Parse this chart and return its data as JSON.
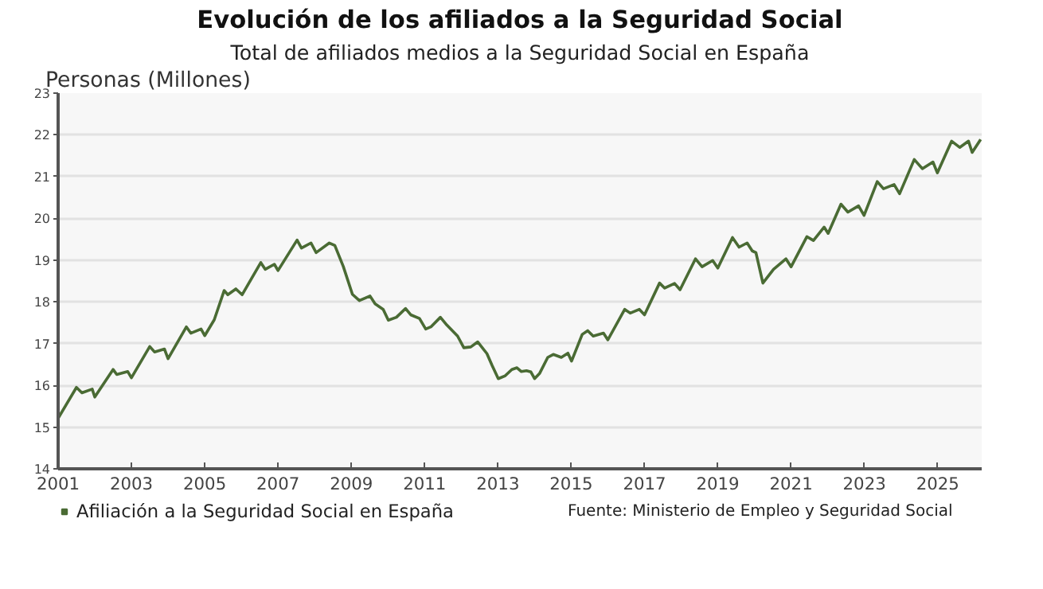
{
  "chart_data": {
    "type": "line",
    "title": "Evolución de los afiliados a la Seguridad Social",
    "subtitle": "Total de afiliados medios a la Seguridad Social en España",
    "ylabel": "Personas (Millones)",
    "annotations": [
      "Fuente: Ministerio de Empleo y Seguridad Social"
    ],
    "x": [
      2001.0,
      2001.5,
      2001.65,
      2001.93,
      2002.0,
      2002.5,
      2002.6,
      2002.9,
      2003.0,
      2003.5,
      2003.63,
      2003.9,
      2004.0,
      2004.5,
      2004.62,
      2004.9,
      2005.0,
      2005.26,
      2005.53,
      2005.63,
      2005.85,
      2006.02,
      2006.53,
      2006.65,
      2006.9,
      2007.0,
      2007.52,
      2007.64,
      2007.9,
      2008.04,
      2008.4,
      2008.55,
      2008.78,
      2009.03,
      2009.22,
      2009.51,
      2009.65,
      2009.87,
      2010.01,
      2010.23,
      2010.48,
      2010.62,
      2010.86,
      2011.03,
      2011.17,
      2011.43,
      2011.61,
      2011.9,
      2012.07,
      2012.26,
      2012.45,
      2012.7,
      2012.84,
      2013.01,
      2013.2,
      2013.38,
      2013.52,
      2013.64,
      2013.78,
      2013.9,
      2014.0,
      2014.14,
      2014.36,
      2014.51,
      2014.73,
      2014.91,
      2015.01,
      2015.3,
      2015.45,
      2015.6,
      2015.88,
      2016.0,
      2016.46,
      2016.61,
      2016.86,
      2017.0,
      2017.41,
      2017.55,
      2017.82,
      2017.97,
      2018.39,
      2018.57,
      2018.86,
      2019.0,
      2019.4,
      2019.58,
      2019.8,
      2019.94,
      2020.04,
      2020.23,
      2020.52,
      2020.86,
      2021.0,
      2021.43,
      2021.61,
      2021.9,
      2022.01,
      2022.36,
      2022.55,
      2022.84,
      2022.99,
      2023.35,
      2023.52,
      2023.81,
      2023.96,
      2024.36,
      2024.58,
      2024.87,
      2024.99,
      2025.38,
      2025.6,
      2025.84,
      2025.94,
      2026.17
    ],
    "series": [
      {
        "name": "Afiliación a la Seguridad Social en España",
        "color": "#4a6b34",
        "values": [
          15.21,
          15.95,
          15.82,
          15.91,
          15.72,
          16.38,
          16.26,
          16.33,
          16.18,
          16.93,
          16.8,
          16.87,
          16.64,
          17.4,
          17.25,
          17.35,
          17.19,
          17.57,
          18.27,
          18.17,
          18.31,
          18.17,
          18.94,
          18.78,
          18.9,
          18.75,
          19.48,
          19.29,
          19.41,
          19.18,
          19.41,
          19.35,
          18.85,
          18.18,
          18.03,
          18.14,
          17.95,
          17.82,
          17.56,
          17.63,
          17.84,
          17.69,
          17.6,
          17.35,
          17.4,
          17.63,
          17.44,
          17.18,
          16.9,
          16.92,
          17.04,
          16.76,
          16.48,
          16.16,
          16.23,
          16.38,
          16.42,
          16.33,
          16.35,
          16.32,
          16.16,
          16.29,
          16.67,
          16.74,
          16.67,
          16.77,
          16.58,
          17.22,
          17.31,
          17.18,
          17.25,
          17.09,
          17.82,
          17.73,
          17.82,
          17.69,
          18.45,
          18.33,
          18.44,
          18.29,
          19.03,
          18.84,
          18.99,
          18.81,
          19.54,
          19.31,
          19.41,
          19.22,
          19.18,
          18.45,
          18.78,
          19.03,
          18.84,
          19.56,
          19.47,
          19.79,
          19.64,
          20.34,
          20.15,
          20.3,
          20.07,
          20.88,
          20.71,
          20.81,
          20.59,
          21.41,
          21.19,
          21.35,
          21.09,
          21.85,
          21.7,
          21.85,
          21.58,
          21.89
        ]
      }
    ],
    "xlim": [
      2001.0,
      2026.2
    ],
    "xticks": [
      2001,
      2003,
      2005,
      2007,
      2009,
      2011,
      2013,
      2015,
      2017,
      2019,
      2021,
      2023,
      2025
    ],
    "ylim": [
      14,
      23
    ],
    "yticks": [
      14,
      15,
      16,
      17,
      18,
      19,
      20,
      21,
      22,
      23
    ],
    "grid": "y",
    "legend": "bottom",
    "marker": "none",
    "line_style": "solid"
  }
}
